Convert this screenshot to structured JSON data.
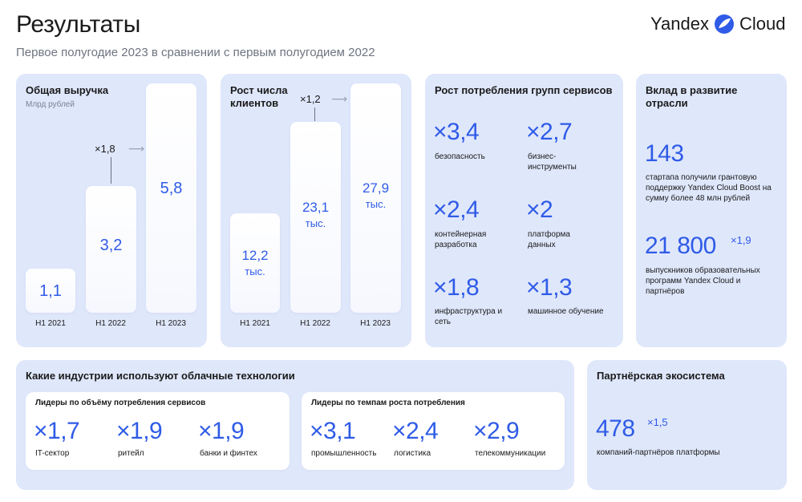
{
  "header": {
    "title": "Результаты",
    "subtitle": "Первое полугодие 2023 в сравнении с первым полугодием 2022",
    "logo_left": "Yandex",
    "logo_right": "Cloud",
    "logo_icon": "yandex-cloud-logo-icon"
  },
  "revenue": {
    "title": "Общая выручка",
    "unit": "Млрд рублей",
    "multiplier": "×1,8",
    "bars": [
      {
        "label": "H1 2021",
        "value": "1,1"
      },
      {
        "label": "H1 2022",
        "value": "3,2"
      },
      {
        "label": "H1 2023",
        "value": "5,8"
      }
    ]
  },
  "clients": {
    "title": "Рост числа клиентов",
    "multiplier": "×1,2",
    "bars": [
      {
        "label": "H1 2021",
        "value": "12,2",
        "unit": "тыс."
      },
      {
        "label": "H1 2022",
        "value": "23,1",
        "unit": "тыс."
      },
      {
        "label": "H1 2023",
        "value": "27,9",
        "unit": "тыс."
      }
    ]
  },
  "services": {
    "title": "Рост потребления групп сервисов",
    "items": [
      {
        "value": "×3,4",
        "label": "безопасность"
      },
      {
        "value": "×2,7",
        "label": "бизнес-инструменты"
      },
      {
        "value": "×2,4",
        "label": "контейнерная разработка"
      },
      {
        "value": "×2",
        "label": "платформа данных"
      },
      {
        "value": "×1,8",
        "label": "инфраструктура и сеть"
      },
      {
        "value": "×1,3",
        "label": "машинное обучение"
      }
    ]
  },
  "industry": {
    "title": "Вклад в развитие отрасли",
    "startups_value": "143",
    "startups_text": "стартапа получили грантовую поддержку Yandex Cloud Boost на сумму более 48 млн рублей",
    "grads_value": "21 800",
    "grads_mult": "×1,9",
    "grads_text": "выпускников образовательных программ Yandex Cloud и партнёров"
  },
  "sectors": {
    "title": "Какие индустрии используют облачные технологии",
    "volume": {
      "title": "Лидеры по объёму потребления сервисов",
      "items": [
        {
          "value": "×1,7",
          "label": "IT-сектор"
        },
        {
          "value": "×1,9",
          "label": "ритейл"
        },
        {
          "value": "×1,9",
          "label": "банки и финтех"
        }
      ]
    },
    "growth": {
      "title": "Лидеры по темпам роста потребления",
      "items": [
        {
          "value": "×3,1",
          "label": "промышленность"
        },
        {
          "value": "×2,4",
          "label": "логистика"
        },
        {
          "value": "×2,9",
          "label": "телекоммуникации"
        }
      ]
    }
  },
  "partners": {
    "title": "Партнёрская экосистема",
    "value": "478",
    "mult": "×1,5",
    "text": "компаний-партнёров платформы"
  },
  "colors": {
    "accent": "#2f5be7",
    "card_bg": "#dfe7fb"
  }
}
